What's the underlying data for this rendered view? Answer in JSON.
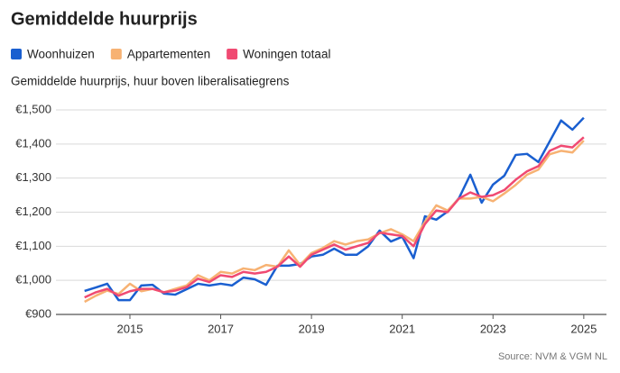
{
  "chart_data": {
    "type": "line",
    "title": "Gemiddelde huurprijs",
    "subtitle": "Gemiddelde huurprijs, huur boven liberalisatiegrens",
    "source": "Source: NVM & VGM NL",
    "x": [
      2014,
      2014.25,
      2014.5,
      2014.75,
      2015,
      2015.25,
      2015.5,
      2015.75,
      2016,
      2016.25,
      2016.5,
      2016.75,
      2017,
      2017.25,
      2017.5,
      2017.75,
      2018,
      2018.25,
      2018.5,
      2018.75,
      2019,
      2019.25,
      2019.5,
      2019.75,
      2020,
      2020.25,
      2020.5,
      2020.75,
      2021,
      2021.25,
      2021.5,
      2021.75,
      2022,
      2022.25,
      2022.5,
      2022.75,
      2023,
      2023.25,
      2023.5,
      2023.75,
      2024,
      2024.25,
      2024.5,
      2024.75,
      2025
    ],
    "series": [
      {
        "name": "Woonhuizen",
        "color": "#1a5fd0",
        "values": [
          969,
          979,
          990,
          942,
          942,
          985,
          987,
          961,
          958,
          974,
          990,
          985,
          990,
          985,
          1008,
          1003,
          987,
          1043,
          1043,
          1048,
          1070,
          1075,
          1093,
          1075,
          1075,
          1100,
          1146,
          1114,
          1128,
          1065,
          1188,
          1178,
          1202,
          1241,
          1310,
          1228,
          1281,
          1307,
          1368,
          1371,
          1347,
          1408,
          1469,
          1442,
          1477
        ]
      },
      {
        "name": "Appartementen",
        "color": "#f7b273",
        "values": [
          937,
          955,
          970,
          960,
          990,
          968,
          975,
          965,
          975,
          985,
          1015,
          1000,
          1025,
          1020,
          1035,
          1030,
          1045,
          1040,
          1088,
          1045,
          1080,
          1095,
          1115,
          1105,
          1115,
          1120,
          1138,
          1150,
          1135,
          1115,
          1172,
          1220,
          1205,
          1240,
          1240,
          1245,
          1232,
          1255,
          1280,
          1310,
          1325,
          1370,
          1380,
          1375,
          1410
        ]
      },
      {
        "name": "Woningen totaal",
        "color": "#f04a72",
        "values": [
          950,
          965,
          975,
          955,
          968,
          975,
          975,
          965,
          970,
          980,
          1005,
          995,
          1015,
          1010,
          1025,
          1020,
          1025,
          1040,
          1070,
          1040,
          1075,
          1090,
          1105,
          1090,
          1100,
          1110,
          1140,
          1135,
          1130,
          1100,
          1165,
          1205,
          1200,
          1240,
          1258,
          1245,
          1250,
          1265,
          1295,
          1320,
          1335,
          1380,
          1395,
          1390,
          1420
        ]
      }
    ],
    "xlim": [
      2013.37,
      2025.5
    ],
    "xticks": [
      2015,
      2017,
      2019,
      2021,
      2023,
      2025
    ],
    "ylim": [
      900,
      1500
    ],
    "yticks": [
      {
        "value": 900,
        "label": "€900"
      },
      {
        "value": 1000,
        "label": "€1,000"
      },
      {
        "value": 1100,
        "label": "€1,100"
      },
      {
        "value": 1200,
        "label": "€1,200"
      },
      {
        "value": 1300,
        "label": "€1,300"
      },
      {
        "value": 1400,
        "label": "€1,400"
      },
      {
        "value": 1500,
        "label": "€1,500"
      }
    ],
    "grid": true,
    "legend": "top"
  }
}
